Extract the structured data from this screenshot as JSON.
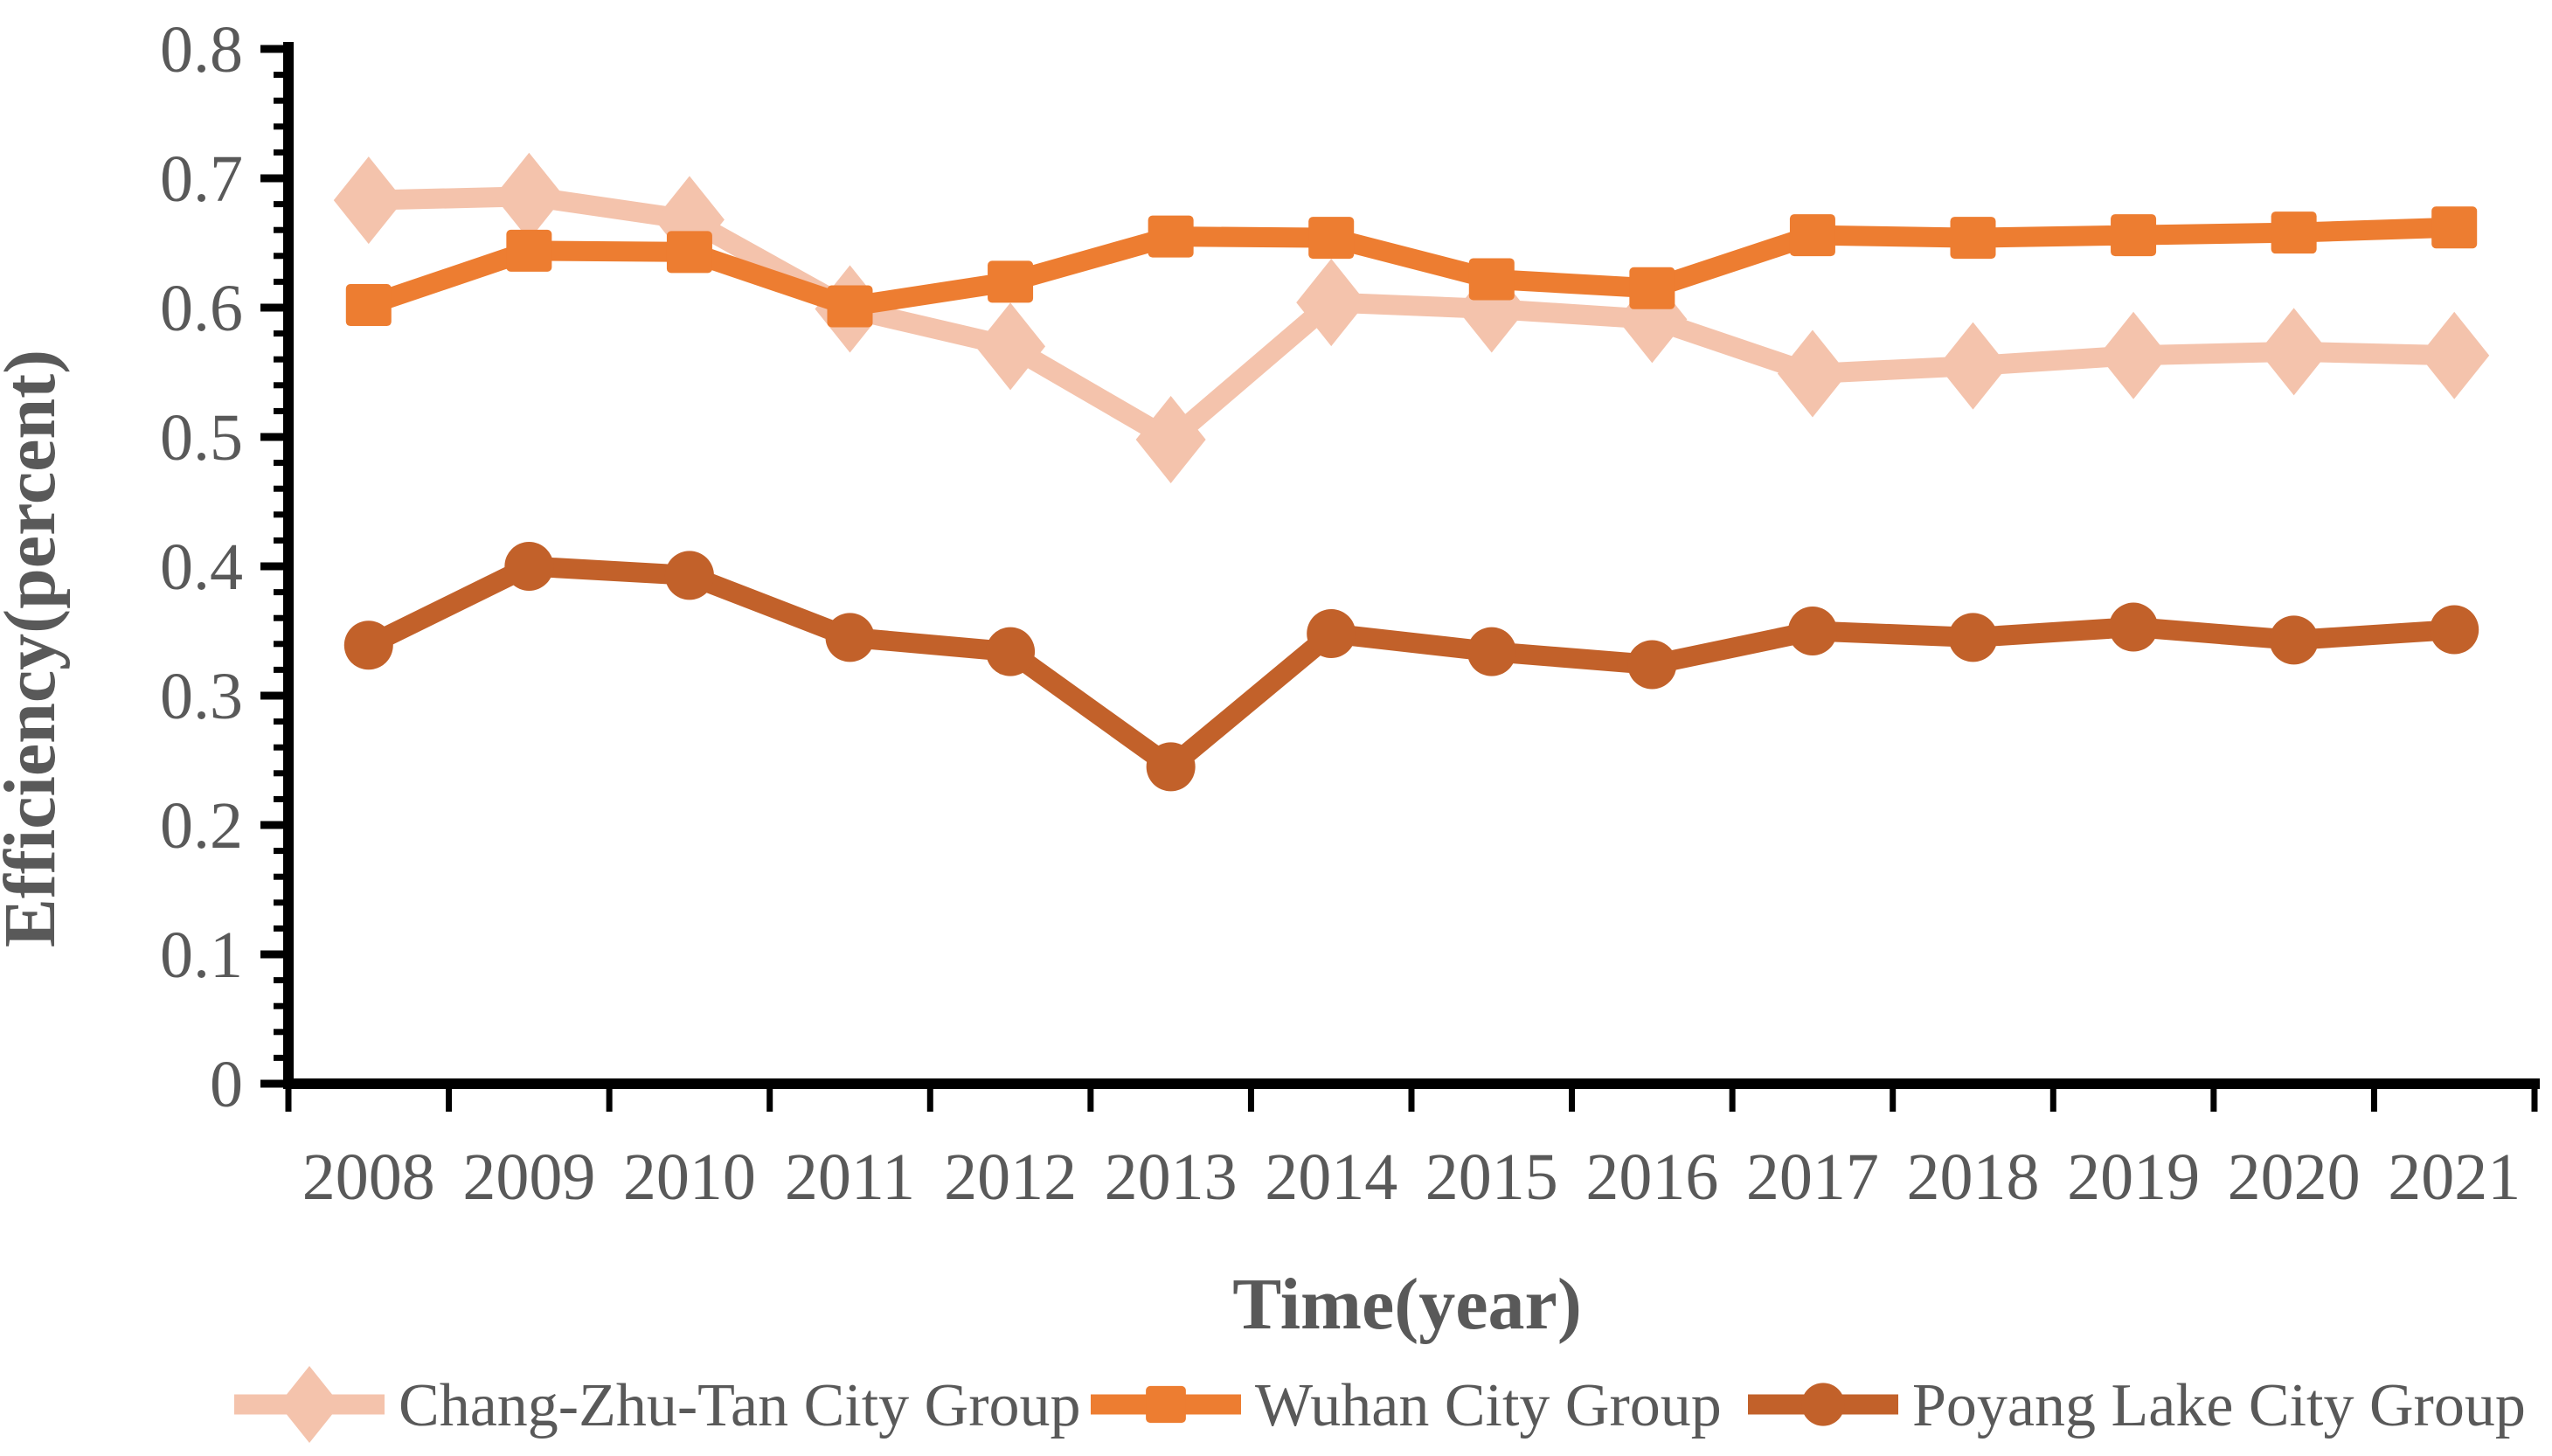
{
  "figure": {
    "background": "#ffffff",
    "axis_color": "#000000",
    "label_color": "#595959"
  },
  "chart_data": {
    "type": "line",
    "title": "",
    "xlabel": "Time(year)",
    "ylabel": "Efficiency(percent)",
    "x": [
      2008,
      2009,
      2010,
      2011,
      2012,
      2013,
      2014,
      2015,
      2016,
      2017,
      2018,
      2019,
      2020,
      2021
    ],
    "series": [
      {
        "name": "Chang-Zhu-Tan City Group",
        "color": "#F4C3AC",
        "marker": "diamond",
        "values": [
          0.683,
          0.686,
          0.668,
          0.599,
          0.57,
          0.498,
          0.604,
          0.599,
          0.591,
          0.549,
          0.555,
          0.563,
          0.566,
          0.563
        ]
      },
      {
        "name": "Wuhan City Group",
        "color": "#ED7D31",
        "marker": "square",
        "values": [
          0.602,
          0.644,
          0.643,
          0.601,
          0.62,
          0.655,
          0.654,
          0.622,
          0.615,
          0.656,
          0.654,
          0.656,
          0.658,
          0.662
        ]
      },
      {
        "name": "Poyang Lake City Group",
        "color": "#C2612A",
        "marker": "circle",
        "values": [
          0.339,
          0.4,
          0.393,
          0.345,
          0.334,
          0.245,
          0.348,
          0.334,
          0.324,
          0.35,
          0.345,
          0.353,
          0.343,
          0.351
        ]
      }
    ],
    "ylim": [
      0,
      0.8
    ],
    "y_major_step": 0.1,
    "y_minor_step": 0.02,
    "y_tick_labels": [
      "0",
      "0.1",
      "0.2",
      "0.3",
      "0.4",
      "0.5",
      "0.6",
      "0.7",
      "0.8"
    ],
    "grid": false,
    "legend_position": "bottom"
  }
}
